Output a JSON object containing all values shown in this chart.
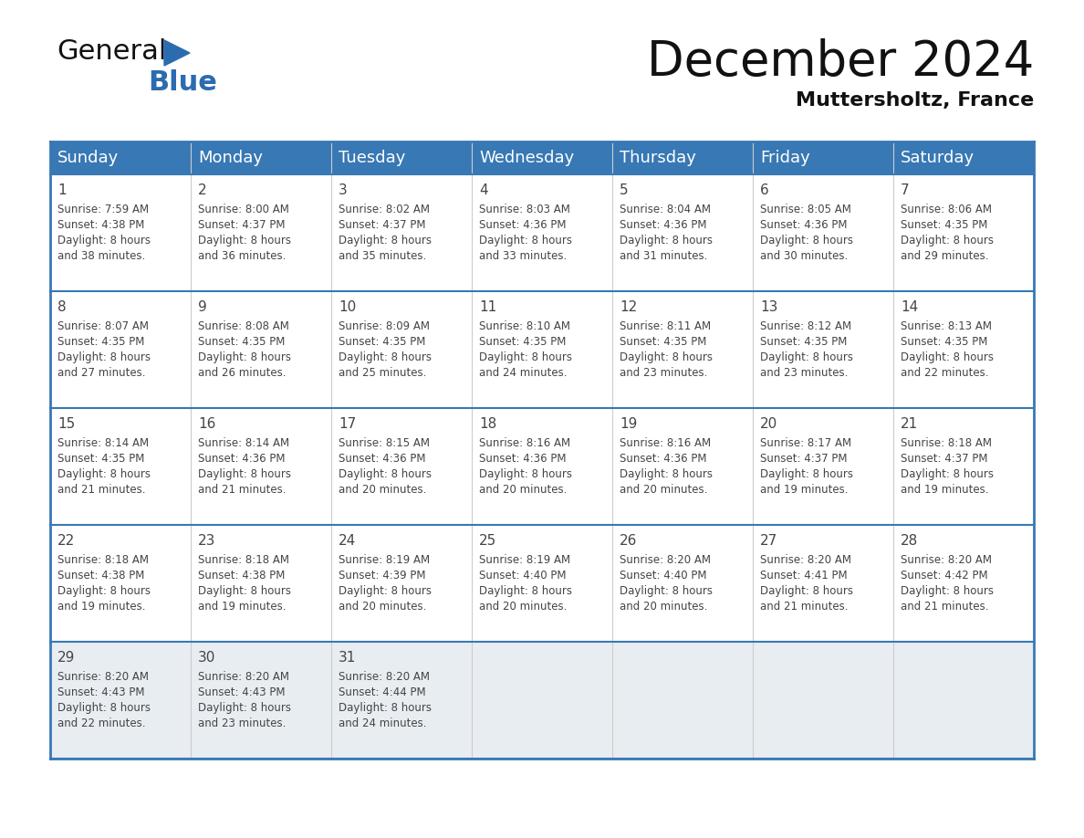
{
  "title": "December 2024",
  "subtitle": "Muttersholtz, France",
  "header_color": "#3878b4",
  "header_text_color": "#ffffff",
  "day_names": [
    "Sunday",
    "Monday",
    "Tuesday",
    "Wednesday",
    "Thursday",
    "Friday",
    "Saturday"
  ],
  "weeks": [
    [
      {
        "day": 1,
        "sunrise": "7:59 AM",
        "sunset": "4:38 PM",
        "daylight": "8 hours and 38 minutes"
      },
      {
        "day": 2,
        "sunrise": "8:00 AM",
        "sunset": "4:37 PM",
        "daylight": "8 hours and 36 minutes"
      },
      {
        "day": 3,
        "sunrise": "8:02 AM",
        "sunset": "4:37 PM",
        "daylight": "8 hours and 35 minutes"
      },
      {
        "day": 4,
        "sunrise": "8:03 AM",
        "sunset": "4:36 PM",
        "daylight": "8 hours and 33 minutes"
      },
      {
        "day": 5,
        "sunrise": "8:04 AM",
        "sunset": "4:36 PM",
        "daylight": "8 hours and 31 minutes"
      },
      {
        "day": 6,
        "sunrise": "8:05 AM",
        "sunset": "4:36 PM",
        "daylight": "8 hours and 30 minutes"
      },
      {
        "day": 7,
        "sunrise": "8:06 AM",
        "sunset": "4:35 PM",
        "daylight": "8 hours and 29 minutes"
      }
    ],
    [
      {
        "day": 8,
        "sunrise": "8:07 AM",
        "sunset": "4:35 PM",
        "daylight": "8 hours and 27 minutes"
      },
      {
        "day": 9,
        "sunrise": "8:08 AM",
        "sunset": "4:35 PM",
        "daylight": "8 hours and 26 minutes"
      },
      {
        "day": 10,
        "sunrise": "8:09 AM",
        "sunset": "4:35 PM",
        "daylight": "8 hours and 25 minutes"
      },
      {
        "day": 11,
        "sunrise": "8:10 AM",
        "sunset": "4:35 PM",
        "daylight": "8 hours and 24 minutes"
      },
      {
        "day": 12,
        "sunrise": "8:11 AM",
        "sunset": "4:35 PM",
        "daylight": "8 hours and 23 minutes"
      },
      {
        "day": 13,
        "sunrise": "8:12 AM",
        "sunset": "4:35 PM",
        "daylight": "8 hours and 23 minutes"
      },
      {
        "day": 14,
        "sunrise": "8:13 AM",
        "sunset": "4:35 PM",
        "daylight": "8 hours and 22 minutes"
      }
    ],
    [
      {
        "day": 15,
        "sunrise": "8:14 AM",
        "sunset": "4:35 PM",
        "daylight": "8 hours and 21 minutes"
      },
      {
        "day": 16,
        "sunrise": "8:14 AM",
        "sunset": "4:36 PM",
        "daylight": "8 hours and 21 minutes"
      },
      {
        "day": 17,
        "sunrise": "8:15 AM",
        "sunset": "4:36 PM",
        "daylight": "8 hours and 20 minutes"
      },
      {
        "day": 18,
        "sunrise": "8:16 AM",
        "sunset": "4:36 PM",
        "daylight": "8 hours and 20 minutes"
      },
      {
        "day": 19,
        "sunrise": "8:16 AM",
        "sunset": "4:36 PM",
        "daylight": "8 hours and 20 minutes"
      },
      {
        "day": 20,
        "sunrise": "8:17 AM",
        "sunset": "4:37 PM",
        "daylight": "8 hours and 19 minutes"
      },
      {
        "day": 21,
        "sunrise": "8:18 AM",
        "sunset": "4:37 PM",
        "daylight": "8 hours and 19 minutes"
      }
    ],
    [
      {
        "day": 22,
        "sunrise": "8:18 AM",
        "sunset": "4:38 PM",
        "daylight": "8 hours and 19 minutes"
      },
      {
        "day": 23,
        "sunrise": "8:18 AM",
        "sunset": "4:38 PM",
        "daylight": "8 hours and 19 minutes"
      },
      {
        "day": 24,
        "sunrise": "8:19 AM",
        "sunset": "4:39 PM",
        "daylight": "8 hours and 20 minutes"
      },
      {
        "day": 25,
        "sunrise": "8:19 AM",
        "sunset": "4:40 PM",
        "daylight": "8 hours and 20 minutes"
      },
      {
        "day": 26,
        "sunrise": "8:20 AM",
        "sunset": "4:40 PM",
        "daylight": "8 hours and 20 minutes"
      },
      {
        "day": 27,
        "sunrise": "8:20 AM",
        "sunset": "4:41 PM",
        "daylight": "8 hours and 21 minutes"
      },
      {
        "day": 28,
        "sunrise": "8:20 AM",
        "sunset": "4:42 PM",
        "daylight": "8 hours and 21 minutes"
      }
    ],
    [
      {
        "day": 29,
        "sunrise": "8:20 AM",
        "sunset": "4:43 PM",
        "daylight": "8 hours and 22 minutes"
      },
      {
        "day": 30,
        "sunrise": "8:20 AM",
        "sunset": "4:43 PM",
        "daylight": "8 hours and 23 minutes"
      },
      {
        "day": 31,
        "sunrise": "8:20 AM",
        "sunset": "4:44 PM",
        "daylight": "8 hours and 24 minutes"
      },
      null,
      null,
      null,
      null
    ]
  ],
  "border_color": "#3878b4",
  "text_color": "#444444",
  "last_row_bg": "#e8edf2",
  "title_fontsize": 38,
  "subtitle_fontsize": 16,
  "day_num_fontsize": 11,
  "cell_text_fontsize": 8.5,
  "header_fontsize": 13
}
